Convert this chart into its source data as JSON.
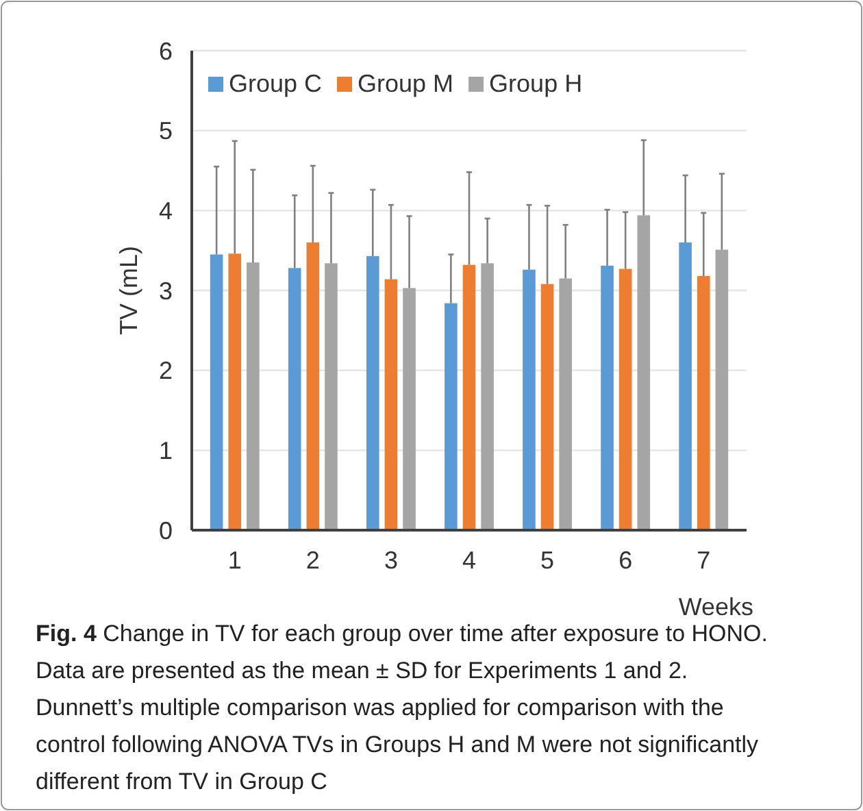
{
  "chart_data": {
    "type": "bar",
    "categories": [
      "1",
      "2",
      "3",
      "4",
      "5",
      "6",
      "7"
    ],
    "xlabel": "Weeks",
    "ylabel": "TV (mL)",
    "ylim": [
      0,
      6
    ],
    "yticks": [
      0,
      1,
      2,
      3,
      4,
      5,
      6
    ],
    "grid": "y",
    "legend": "top left",
    "series": [
      {
        "name": "Group C",
        "color": "#5b9bd5",
        "values": [
          3.45,
          3.28,
          3.43,
          2.84,
          3.26,
          3.31,
          3.6
        ],
        "errors": [
          1.1,
          0.91,
          0.83,
          0.61,
          0.81,
          0.7,
          0.84
        ]
      },
      {
        "name": "Group M",
        "color": "#ed7d31",
        "values": [
          3.46,
          3.6,
          3.14,
          3.32,
          3.08,
          3.27,
          3.18
        ],
        "errors": [
          1.41,
          0.96,
          0.93,
          1.16,
          0.98,
          0.71,
          0.79
        ]
      },
      {
        "name": "Group H",
        "color": "#a5a5a5",
        "values": [
          3.35,
          3.34,
          3.03,
          3.34,
          3.15,
          3.94,
          3.51
        ],
        "errors": [
          1.16,
          0.88,
          0.9,
          0.56,
          0.67,
          0.94,
          0.95
        ]
      }
    ],
    "annotations": [
      "Fig. 4",
      "Change in TV for each group over time after exposure to HONO. Data are presented as the mean ± SD for Experiments 1 and 2. Dunnett’s multiple comparison was applied for comparison with the control following ANOVA TVs in Groups H and M were not significantly different from TV in Group C"
    ]
  }
}
